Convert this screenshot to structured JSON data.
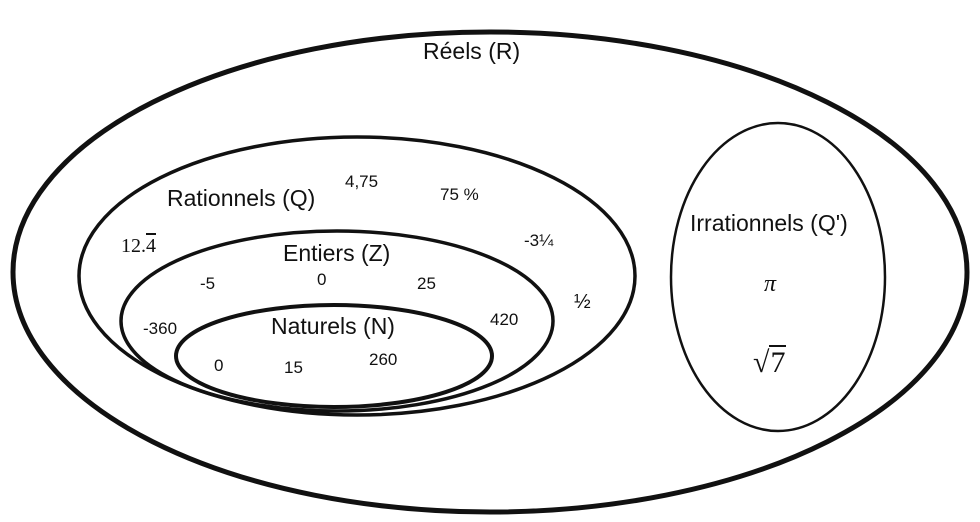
{
  "sets": {
    "reels": {
      "label": "Réels (R)"
    },
    "rationnels": {
      "label": "Rationnels (Q)"
    },
    "entiers": {
      "label": "Entiers (Z)"
    },
    "naturels": {
      "label": "Naturels (N)"
    },
    "irrationnels": {
      "label": "Irrationnels (Q')"
    }
  },
  "elements": {
    "rationnels": {
      "four_75": "4,75",
      "percent": "75 %",
      "repeating_int": "12.",
      "repeating_digit": "4",
      "mixed": "-3¼",
      "half": "½"
    },
    "entiers": {
      "minus5": "-5",
      "zero": "0",
      "twentyfive": "25",
      "minus360": "-360",
      "four20": "420"
    },
    "naturels": {
      "zero": "0",
      "fifteen": "15",
      "two60": "260"
    },
    "irrationnels": {
      "pi": "π",
      "sqrt_radical": "√",
      "sqrt_radicand": "7"
    }
  },
  "colors": {
    "stroke": "#111111",
    "background": "#ffffff"
  }
}
